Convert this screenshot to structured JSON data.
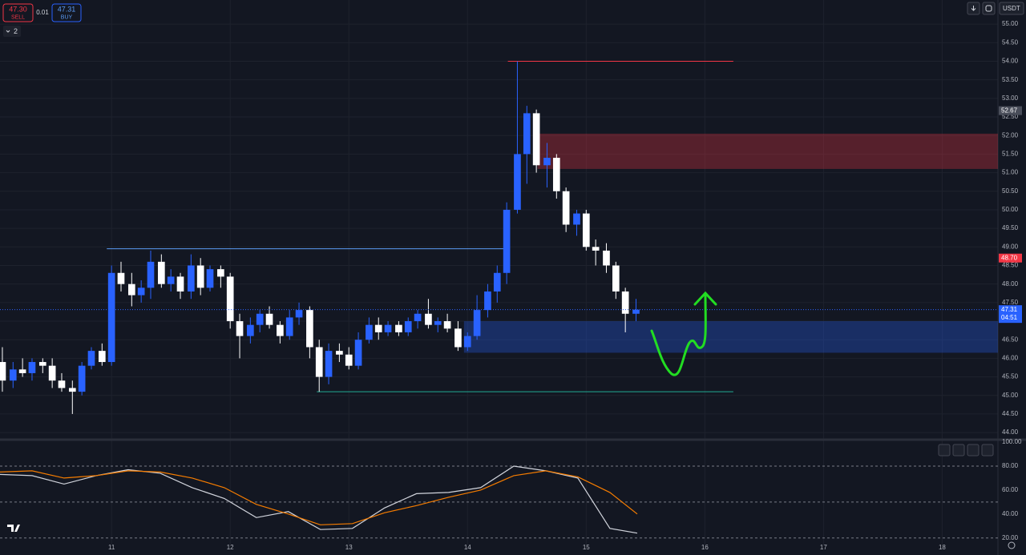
{
  "header": {
    "sell_price": "47.30",
    "sell_label": "SELL",
    "spread": "0.01",
    "buy_price": "47.31",
    "buy_label": "BUY",
    "indicator_count": "2",
    "currency": "USDT"
  },
  "chart_data": [
    {
      "type": "candlestick",
      "x": [
        10.08,
        10.17,
        10.25,
        10.33,
        10.42,
        10.5,
        10.58,
        10.67,
        10.75,
        10.83,
        10.92,
        11,
        11.08,
        11.17,
        11.25,
        11.33,
        11.42,
        11.5,
        11.58,
        11.67,
        11.75,
        11.83,
        11.92,
        12,
        12.08,
        12.17,
        12.25,
        12.33,
        12.42,
        12.5,
        12.58,
        12.67,
        12.75,
        12.83,
        12.92,
        13,
        13.08,
        13.17,
        13.25,
        13.33,
        13.42,
        13.5,
        13.58,
        13.67,
        13.75,
        13.83,
        13.92,
        14,
        14.08,
        14.17,
        14.25,
        14.33,
        14.42,
        14.5,
        14.58,
        14.67,
        14.75,
        14.83,
        14.92,
        15,
        15.08,
        15.17,
        15.25,
        15.33,
        15.42
      ],
      "open": [
        45.9,
        45.4,
        45.7,
        45.6,
        45.9,
        45.8,
        45.4,
        45.2,
        45.1,
        45.8,
        46.2,
        45.9,
        48.3,
        48,
        47.7,
        47.9,
        48.6,
        48,
        48.2,
        47.8,
        48.5,
        47.9,
        48.4,
        48.2,
        47,
        46.6,
        46.9,
        47.2,
        46.9,
        46.6,
        47.1,
        47.3,
        46.3,
        45.5,
        46.2,
        46.1,
        45.8,
        46.5,
        46.9,
        46.7,
        46.9,
        46.7,
        47,
        47.2,
        46.9,
        47,
        46.8,
        46.3,
        46.6,
        47.3,
        47.8,
        48.3,
        50,
        51.5,
        52.6,
        51.2,
        51.4,
        50.5,
        49.6,
        49.9,
        49,
        48.9,
        48.5,
        47.8,
        47.2
      ],
      "high": [
        46.3,
        45.9,
        46,
        46,
        46,
        46,
        45.6,
        45.4,
        45.9,
        46.3,
        46.4,
        48.5,
        48.6,
        48.3,
        48.1,
        48.9,
        48.8,
        48.4,
        48.3,
        48.8,
        48.7,
        48.5,
        48.5,
        48.3,
        47.2,
        47.1,
        47.3,
        47.4,
        47,
        47.3,
        47.5,
        47.4,
        46.5,
        46.4,
        46.4,
        46.3,
        46.7,
        47.1,
        47.1,
        47,
        47,
        47.1,
        47.3,
        47.6,
        47.1,
        47.2,
        47,
        46.7,
        47.7,
        48,
        48.5,
        50.2,
        54,
        52.8,
        52.7,
        51.8,
        51.5,
        50.6,
        50,
        50,
        49.2,
        49.1,
        48.6,
        47.9,
        47.6
      ],
      "low": [
        45.1,
        45.2,
        45.5,
        45.4,
        45.6,
        45.2,
        45.1,
        44.5,
        45,
        45.7,
        45.8,
        45.8,
        47.8,
        47.4,
        47.5,
        47.6,
        47.9,
        47.8,
        47.6,
        47.6,
        47.7,
        47.8,
        47.9,
        46.8,
        46,
        46.4,
        46.7,
        46.8,
        46.4,
        46.5,
        46.9,
        46,
        45.1,
        45.3,
        45.9,
        45.7,
        45.7,
        46.4,
        46.5,
        46.6,
        46.6,
        46.6,
        46.8,
        46.8,
        46.7,
        46.7,
        46.2,
        46.2,
        46.5,
        47.1,
        47.5,
        48,
        49.9,
        50.7,
        51,
        50.6,
        50.3,
        49.4,
        49.3,
        48.9,
        48.5,
        48.3,
        47.6,
        46.7,
        47
      ],
      "close": [
        45.4,
        45.7,
        45.6,
        45.9,
        45.8,
        45.4,
        45.2,
        45.1,
        45.8,
        46.2,
        45.9,
        48.3,
        48,
        47.7,
        47.9,
        48.6,
        48,
        48.2,
        47.8,
        48.5,
        47.9,
        48.4,
        48.2,
        47,
        46.6,
        46.9,
        47.2,
        46.9,
        46.6,
        47.1,
        47.3,
        46.3,
        45.5,
        46.2,
        46.1,
        45.8,
        46.5,
        46.9,
        46.7,
        46.9,
        46.7,
        47,
        47.2,
        46.9,
        47,
        46.8,
        46.3,
        46.6,
        47.3,
        47.8,
        48.3,
        50,
        51.5,
        52.6,
        51.2,
        51.4,
        50.5,
        49.6,
        49.9,
        49,
        48.9,
        48.5,
        47.8,
        47.2,
        47.31
      ],
      "up_color": "#2962ff",
      "down_color": "#ffffff",
      "xlim": [
        10.06,
        18.47
      ],
      "xticks": [
        11,
        12,
        13,
        14,
        15,
        16,
        17,
        18
      ],
      "ylim": [
        43.83,
        55.65
      ],
      "yticks": [
        {
          "value": 44,
          "label": "44.00"
        },
        {
          "value": 44.5,
          "label": "44.50"
        },
        {
          "value": 45,
          "label": "45.00"
        },
        {
          "value": 45.5,
          "label": "45.50"
        },
        {
          "value": 46,
          "label": "46.00"
        },
        {
          "value": 46.5,
          "label": "46.50"
        },
        {
          "value": 47,
          "label": "47.00"
        },
        {
          "value": 47.5,
          "label": "47.50"
        },
        {
          "value": 48,
          "label": "48.00"
        },
        {
          "value": 48.5,
          "label": "48.50"
        },
        {
          "value": 49,
          "label": "49.00"
        },
        {
          "value": 49.5,
          "label": "49.50"
        },
        {
          "value": 50,
          "label": "50.00"
        },
        {
          "value": 50.5,
          "label": "50.50"
        },
        {
          "value": 51,
          "label": "51.00"
        },
        {
          "value": 51.5,
          "label": "51.50"
        },
        {
          "value": 52,
          "label": "52.00"
        },
        {
          "value": 52.5,
          "label": "52.50"
        },
        {
          "value": 53,
          "label": "53.00"
        },
        {
          "value": 53.5,
          "label": "53.50"
        },
        {
          "value": 54,
          "label": "54.00"
        },
        {
          "value": 54.5,
          "label": "54.50"
        },
        {
          "value": 55,
          "label": "55.00"
        }
      ],
      "price_labels": [
        {
          "value": 52.67,
          "label": "52.67",
          "color": "#4a4e5a"
        },
        {
          "value": 48.7,
          "label": "48.70",
          "color": "#f23645"
        },
        {
          "value": 47.31,
          "label": "47.31",
          "sub": "04:51",
          "color": "#2962ff"
        }
      ],
      "levels": [
        {
          "price": 54,
          "x": [
            14.34,
            16.24
          ],
          "color": "#f23645"
        },
        {
          "price": 45.1,
          "x": [
            12.73,
            16.24
          ],
          "color": "#22ab94"
        },
        {
          "price": 48.95,
          "x": [
            10.96,
            14.32
          ],
          "color": "#5b9cf6"
        }
      ],
      "zones": [
        {
          "low": 51.1,
          "high": 52.05,
          "x": [
            14.59,
            18.47
          ],
          "color": "rgba(242,54,69,0.3)"
        },
        {
          "low": 46.15,
          "high": 47,
          "x": [
            13.97,
            18.47
          ],
          "color": "rgba(41,98,255,0.3)"
        }
      ]
    },
    {
      "type": "line",
      "x": [
        10.06,
        10.33,
        10.6,
        10.87,
        11.14,
        11.41,
        11.68,
        11.95,
        12.22,
        12.49,
        12.76,
        13.03,
        13.3,
        13.57,
        13.84,
        14.11,
        14.39,
        14.66,
        14.93,
        15.2,
        15.43
      ],
      "series": [
        {
          "color": "#d1d4dc",
          "values": [
            73,
            72,
            65,
            72,
            77,
            74,
            62,
            53,
            37,
            42,
            27,
            28,
            45,
            57,
            58,
            62,
            80,
            76,
            70,
            28,
            24
          ]
        },
        {
          "color": "#f57c00",
          "values": [
            75,
            76,
            70,
            72,
            76,
            75,
            70,
            62,
            48,
            40,
            31,
            32,
            41,
            47,
            54,
            60,
            72,
            76,
            71,
            58,
            40
          ]
        }
      ],
      "xlim": [
        10.06,
        18.47
      ],
      "ylim": [
        15.8,
        100.7
      ],
      "yticks": [
        {
          "value": 100,
          "label": "100.00"
        },
        {
          "value": 80,
          "label": "80.00"
        },
        {
          "value": 60,
          "label": "60.00"
        },
        {
          "value": 40,
          "label": "40.00"
        },
        {
          "value": 20,
          "label": "20.00"
        }
      ],
      "bands": [
        80,
        50,
        20
      ]
    }
  ]
}
